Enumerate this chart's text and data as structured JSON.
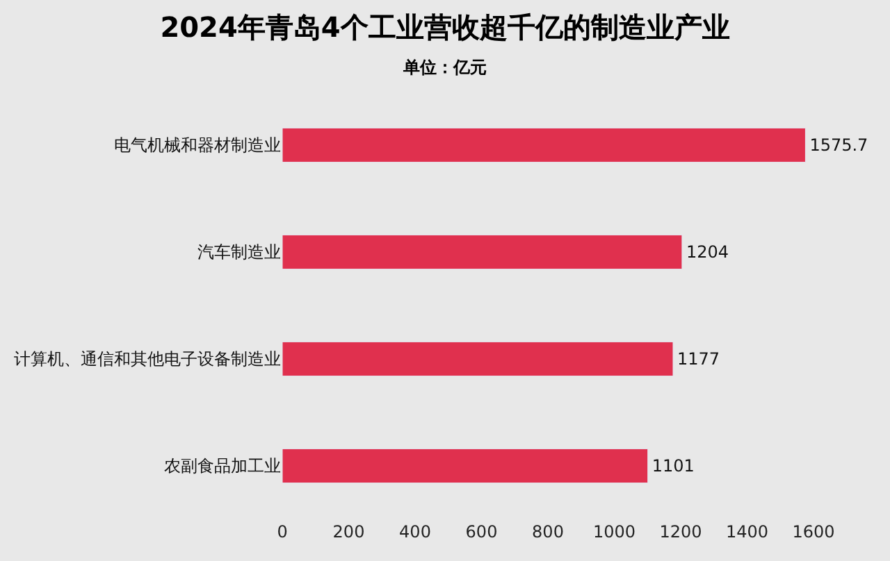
{
  "chart_data": {
    "type": "bar",
    "orientation": "horizontal",
    "title": "2024年青岛4个工业营收超千亿的制造业产业",
    "subtitle": "单位：亿元",
    "categories": [
      "电气机械和器材制造业",
      "汽车制造业",
      "计算机、通信和其他电子设备制造业",
      "农副食品加工业"
    ],
    "values": [
      1575.7,
      1204,
      1177,
      1101
    ],
    "color": "#e0304e",
    "data_labels": true,
    "xlim": [
      0,
      1600
    ],
    "xticks": [
      0,
      200,
      400,
      600,
      800,
      1000,
      1200,
      1400,
      1600
    ],
    "grid": false
  }
}
